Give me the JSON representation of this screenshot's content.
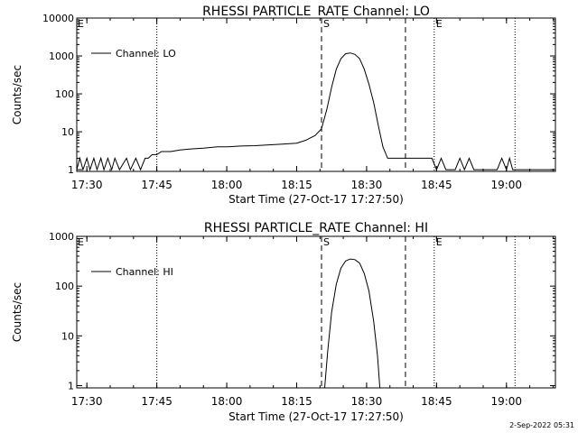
{
  "footer": {
    "timestamp": "2-Sep-2022 05:31"
  },
  "chart_data": [
    {
      "type": "line",
      "title": "RHESSI PARTICLE_RATE Channel: LO",
      "xlabel": "Start Time (27-Oct-17 17:27:50)",
      "ylabel": "Counts/sec",
      "yscale": "log",
      "xlim": [
        "17:27:50",
        "19:10:30"
      ],
      "ylim": [
        0.9,
        10000
      ],
      "x_ticks": [
        "17:30",
        "17:45",
        "18:00",
        "18:15",
        "18:30",
        "18:45",
        "19:00"
      ],
      "y_ticks": [
        "1",
        "10",
        "100",
        "1000",
        "10000"
      ],
      "legend": {
        "label": "Channel: LO",
        "position": "top-left"
      },
      "markers": {
        "S": "18:20:20",
        "E": "18:44:30",
        "E_top_left": "E",
        "S_label": "S",
        "E_label": "E"
      },
      "dashed_lines": [
        "18:20:20",
        "18:38:20"
      ],
      "dotted_lines": [
        "17:45:00",
        "18:44:30",
        "19:01:50"
      ],
      "series": [
        {
          "values": [
            [
              "17:27:50",
              1
            ],
            [
              "17:28:30",
              2
            ],
            [
              "17:29:10",
              1
            ],
            [
              "17:30:00",
              2
            ],
            [
              "17:30:40",
              1
            ],
            [
              "17:31:30",
              2
            ],
            [
              "17:32:10",
              1
            ],
            [
              "17:33:00",
              2
            ],
            [
              "17:33:40",
              1
            ],
            [
              "17:34:30",
              2
            ],
            [
              "17:35:20",
              1
            ],
            [
              "17:36:00",
              2
            ],
            [
              "17:37:00",
              1
            ],
            [
              "17:38:30",
              2
            ],
            [
              "17:39:20",
              1
            ],
            [
              "17:40:30",
              2
            ],
            [
              "17:41:30",
              1
            ],
            [
              "17:42:30",
              2
            ],
            [
              "17:43:10",
              2
            ],
            [
              "17:44:00",
              2.5
            ],
            [
              "17:45:00",
              2.5
            ],
            [
              "17:46:00",
              3
            ],
            [
              "17:48:00",
              3
            ],
            [
              "17:50:00",
              3.3
            ],
            [
              "17:52:00",
              3.5
            ],
            [
              "17:55:00",
              3.7
            ],
            [
              "17:58:00",
              4
            ],
            [
              "18:00:00",
              4
            ],
            [
              "18:03:00",
              4.2
            ],
            [
              "18:06:00",
              4.3
            ],
            [
              "18:09:00",
              4.5
            ],
            [
              "18:12:00",
              4.7
            ],
            [
              "18:15:00",
              5
            ],
            [
              "18:17:00",
              6
            ],
            [
              "18:19:00",
              8
            ],
            [
              "18:20:20",
              12
            ],
            [
              "18:21:30",
              40
            ],
            [
              "18:22:30",
              150
            ],
            [
              "18:23:30",
              450
            ],
            [
              "18:24:30",
              850
            ],
            [
              "18:25:30",
              1150
            ],
            [
              "18:26:30",
              1200
            ],
            [
              "18:27:30",
              1100
            ],
            [
              "18:28:30",
              850
            ],
            [
              "18:29:30",
              450
            ],
            [
              "18:30:30",
              180
            ],
            [
              "18:31:30",
              60
            ],
            [
              "18:32:30",
              15
            ],
            [
              "18:33:30",
              4
            ],
            [
              "18:34:30",
              2
            ],
            [
              "18:36:00",
              2
            ],
            [
              "18:38:20",
              2
            ],
            [
              "18:40:00",
              2
            ],
            [
              "18:42:00",
              2
            ],
            [
              "18:44:00",
              2
            ],
            [
              "18:45:00",
              1
            ],
            [
              "18:46:00",
              2
            ],
            [
              "18:47:00",
              1
            ],
            [
              "18:49:00",
              1
            ],
            [
              "18:50:00",
              2
            ],
            [
              "18:51:00",
              1
            ],
            [
              "18:52:00",
              2
            ],
            [
              "18:53:00",
              1
            ],
            [
              "18:58:00",
              1
            ],
            [
              "18:59:00",
              2
            ],
            [
              "19:00:00",
              1
            ],
            [
              "19:00:40",
              2
            ],
            [
              "19:01:20",
              1
            ],
            [
              "19:10:30",
              1
            ]
          ]
        }
      ]
    },
    {
      "type": "line",
      "title": "RHESSI PARTICLE_RATE Channel: HI",
      "xlabel": "Start Time (27-Oct-17 17:27:50)",
      "ylabel": "Counts/sec",
      "yscale": "log",
      "xlim": [
        "17:27:50",
        "19:10:30"
      ],
      "ylim": [
        0.9,
        1000
      ],
      "x_ticks": [
        "17:30",
        "17:45",
        "18:00",
        "18:15",
        "18:30",
        "18:45",
        "19:00"
      ],
      "y_ticks": [
        "1",
        "10",
        "100",
        "1000"
      ],
      "legend": {
        "label": "Channel: HI",
        "position": "top-left"
      },
      "markers": {
        "S": "18:20:20",
        "E": "18:44:30",
        "E_top_left": "E",
        "S_label": "S",
        "E_label": "E"
      },
      "dashed_lines": [
        "18:20:20",
        "18:38:20"
      ],
      "dotted_lines": [
        "17:45:00",
        "18:44:30",
        "19:01:50"
      ],
      "series": [
        {
          "values": [
            [
              "18:21:00",
              0.9
            ],
            [
              "18:21:40",
              5
            ],
            [
              "18:22:30",
              30
            ],
            [
              "18:23:30",
              110
            ],
            [
              "18:24:30",
              230
            ],
            [
              "18:25:30",
              320
            ],
            [
              "18:26:30",
              350
            ],
            [
              "18:27:30",
              340
            ],
            [
              "18:28:30",
              290
            ],
            [
              "18:29:30",
              180
            ],
            [
              "18:30:30",
              80
            ],
            [
              "18:31:30",
              20
            ],
            [
              "18:32:20",
              4
            ],
            [
              "18:32:50",
              0.9
            ]
          ]
        }
      ]
    }
  ]
}
